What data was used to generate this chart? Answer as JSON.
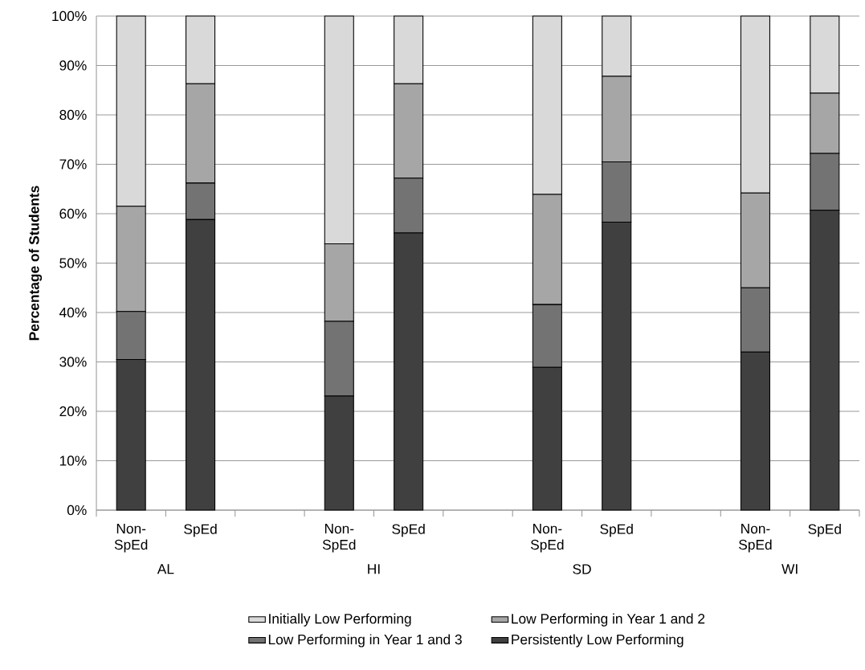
{
  "chart_data": {
    "type": "bar",
    "stacked": true,
    "ylabel": "Percentage of Students",
    "categories": [
      "Non-SpEd",
      "SpEd",
      null,
      "Non-SpEd",
      "SpEd",
      null,
      "Non-SpEd",
      "SpEd",
      null,
      "Non-SpEd",
      "SpEd"
    ],
    "annotations": [
      "AL",
      "HI",
      "SD",
      "WI"
    ],
    "series": [
      {
        "name": "Persistently Low Performing",
        "color": "#404040",
        "values": [
          30.5,
          58.8,
          null,
          23.1,
          56.1,
          null,
          28.9,
          58.3,
          null,
          32.0,
          60.7
        ]
      },
      {
        "name": "Low Performing in Year 1 and 3",
        "color": "#737373",
        "values": [
          9.7,
          7.4,
          null,
          15.1,
          11.1,
          null,
          12.7,
          12.2,
          null,
          13.0,
          11.5
        ]
      },
      {
        "name": "Low Performing in Year 1 and 2",
        "color": "#a6a6a6",
        "values": [
          21.3,
          20.1,
          null,
          15.7,
          19.1,
          null,
          22.3,
          17.3,
          null,
          19.2,
          12.2
        ]
      },
      {
        "name": "Initially Low Performing",
        "color": "#d9d9d9",
        "values": [
          38.5,
          13.7,
          null,
          46.1,
          13.7,
          null,
          36.1,
          12.2,
          null,
          35.8,
          15.6
        ]
      }
    ],
    "ylim": [
      0,
      100
    ],
    "yticks": [
      {
        "value": 0,
        "label": "0%"
      },
      {
        "value": 10,
        "label": "10%"
      },
      {
        "value": 20,
        "label": "20%"
      },
      {
        "value": 30,
        "label": "30%"
      },
      {
        "value": 40,
        "label": "40%"
      },
      {
        "value": 50,
        "label": "50%"
      },
      {
        "value": 60,
        "label": "60%"
      },
      {
        "value": 70,
        "label": "70%"
      },
      {
        "value": 80,
        "label": "80%"
      },
      {
        "value": 90,
        "label": "90%"
      },
      {
        "value": 100,
        "label": "100%"
      }
    ],
    "grid": "y",
    "legend": "bottom"
  }
}
